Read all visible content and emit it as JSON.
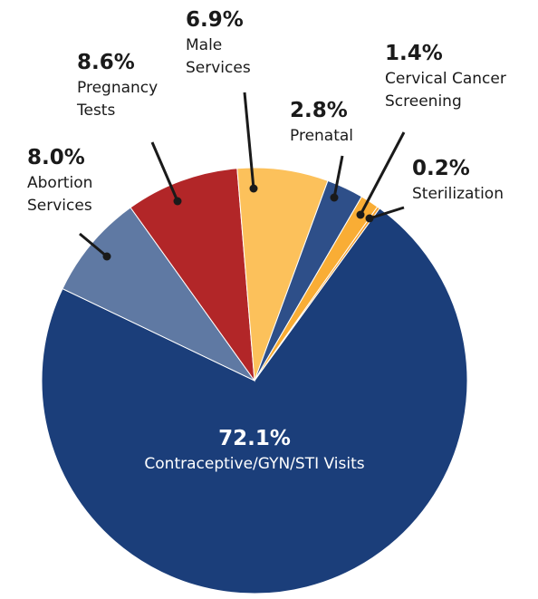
{
  "chart_data": {
    "type": "pie",
    "categories": [
      "Contraceptive/GYN/STI Visits",
      "Abortion Services",
      "Pregnancy Tests",
      "Male Services",
      "Prenatal",
      "Cervical Cancer Screening",
      "Sterilization"
    ],
    "values": [
      72.1,
      8.0,
      8.6,
      6.9,
      2.8,
      1.4,
      0.2
    ],
    "value_labels": [
      "72.1%",
      "8.0%",
      "8.6%",
      "6.9%",
      "2.8%",
      "1.4%",
      "0.2%"
    ],
    "colors": [
      "#1b3e7a",
      "#5f79a3",
      "#b22628",
      "#fcc15b",
      "#2e4f89",
      "#f9ad35",
      "#f6a02a"
    ]
  }
}
